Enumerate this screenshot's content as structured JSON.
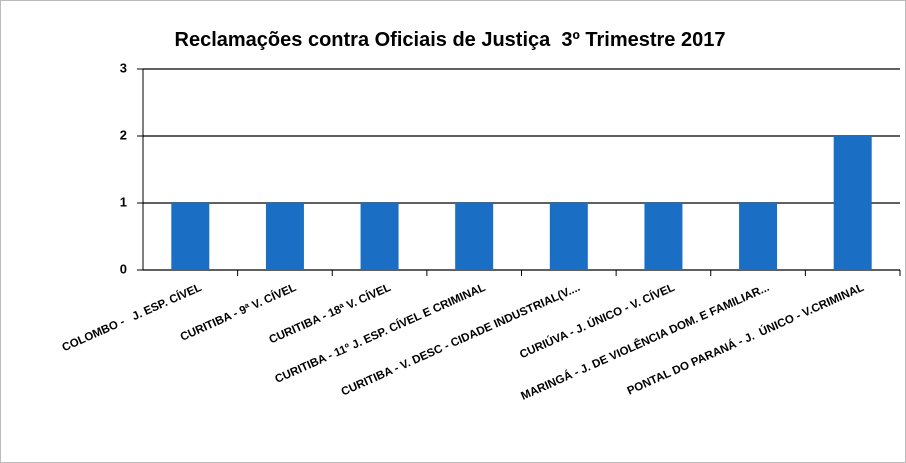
{
  "chart_data": {
    "type": "bar",
    "title": "Reclamações contra Oficiais de Justiça  3º Trimestre 2017",
    "categories": [
      "COLOMBO -   J. ESP. CÍVEL",
      "CURITIBA - 9ª V. CÍVEL",
      "CURITIBA - 18ª V. CÍVEL",
      "CURITIBA - 11º J. ESP. CÍVEL E CRIMINAL",
      "CURITIBA - V. DESC - CIDADE INDUSTRIAL(V....",
      "CURIÚVA - J. ÚNICO - V. CÍVEL",
      "MARINGÁ - J. DE VIOLÊNCIA DOM. E FAMILIAR...",
      "PONTAL DO PARANÁ - J.  ÚNICO - V.CRIMINAL"
    ],
    "values": [
      1,
      1,
      1,
      1,
      1,
      1,
      1,
      2
    ],
    "color": "#1a6fc4",
    "ylim": [
      0,
      3
    ],
    "yticks": [
      0,
      1,
      2,
      3
    ],
    "grid": true
  }
}
